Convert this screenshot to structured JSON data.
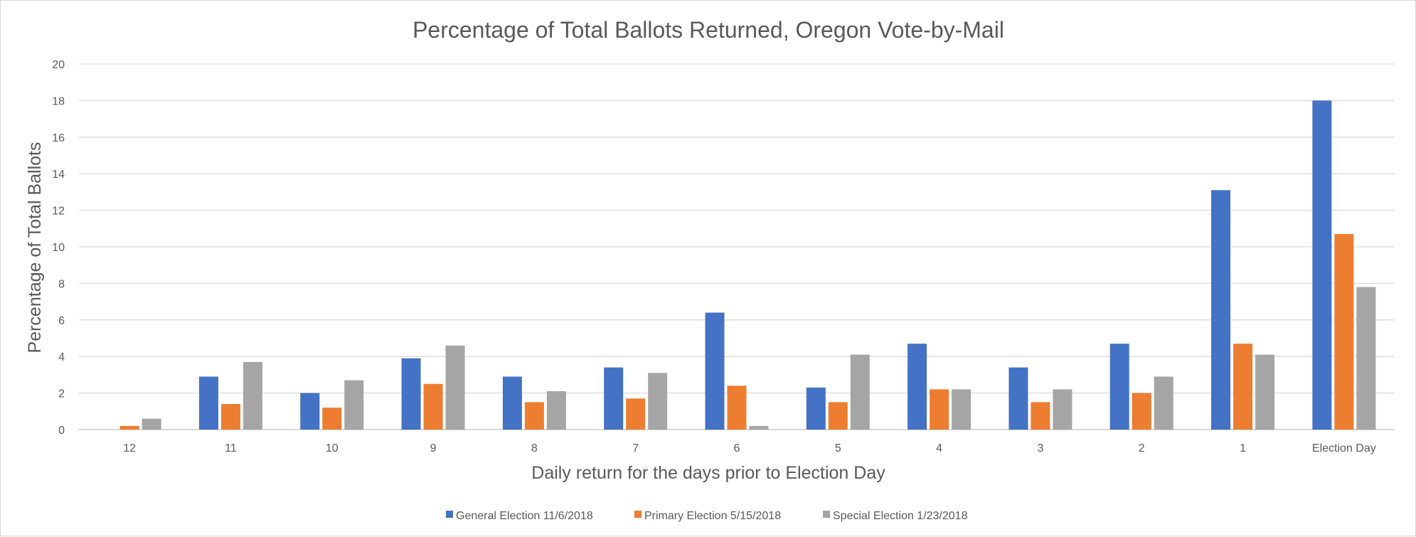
{
  "chart_data": {
    "type": "bar",
    "title": "Percentage of Total Ballots Returned, Oregon Vote-by-Mail",
    "xlabel": "Daily return for the days prior to Election Day",
    "ylabel": "Percentage of Total Ballots",
    "ylim": [
      0,
      20
    ],
    "yticks": [
      0,
      2,
      4,
      6,
      8,
      10,
      12,
      14,
      16,
      18,
      20
    ],
    "grid": true,
    "legend_position": "bottom",
    "categories": [
      "12",
      "11",
      "10",
      "9",
      "8",
      "7",
      "6",
      "5",
      "4",
      "3",
      "2",
      "1",
      "Election Day"
    ],
    "series": [
      {
        "name": "General Election 11/6/2018",
        "color": "#4472C4",
        "values": [
          0,
          2.9,
          2.0,
          3.9,
          2.9,
          3.4,
          6.4,
          2.3,
          4.7,
          3.4,
          4.7,
          13.1,
          18.0
        ]
      },
      {
        "name": "Primary Election 5/15/2018",
        "color": "#ED7D31",
        "values": [
          0.2,
          1.4,
          1.2,
          2.5,
          1.5,
          1.7,
          2.4,
          1.5,
          2.2,
          1.5,
          2.0,
          4.7,
          10.7
        ]
      },
      {
        "name": "Special Election 1/23/2018",
        "color": "#A5A5A5",
        "values": [
          0.6,
          3.7,
          2.7,
          4.6,
          2.1,
          3.1,
          0.2,
          4.1,
          2.2,
          2.2,
          2.9,
          4.1,
          7.8
        ]
      }
    ]
  }
}
